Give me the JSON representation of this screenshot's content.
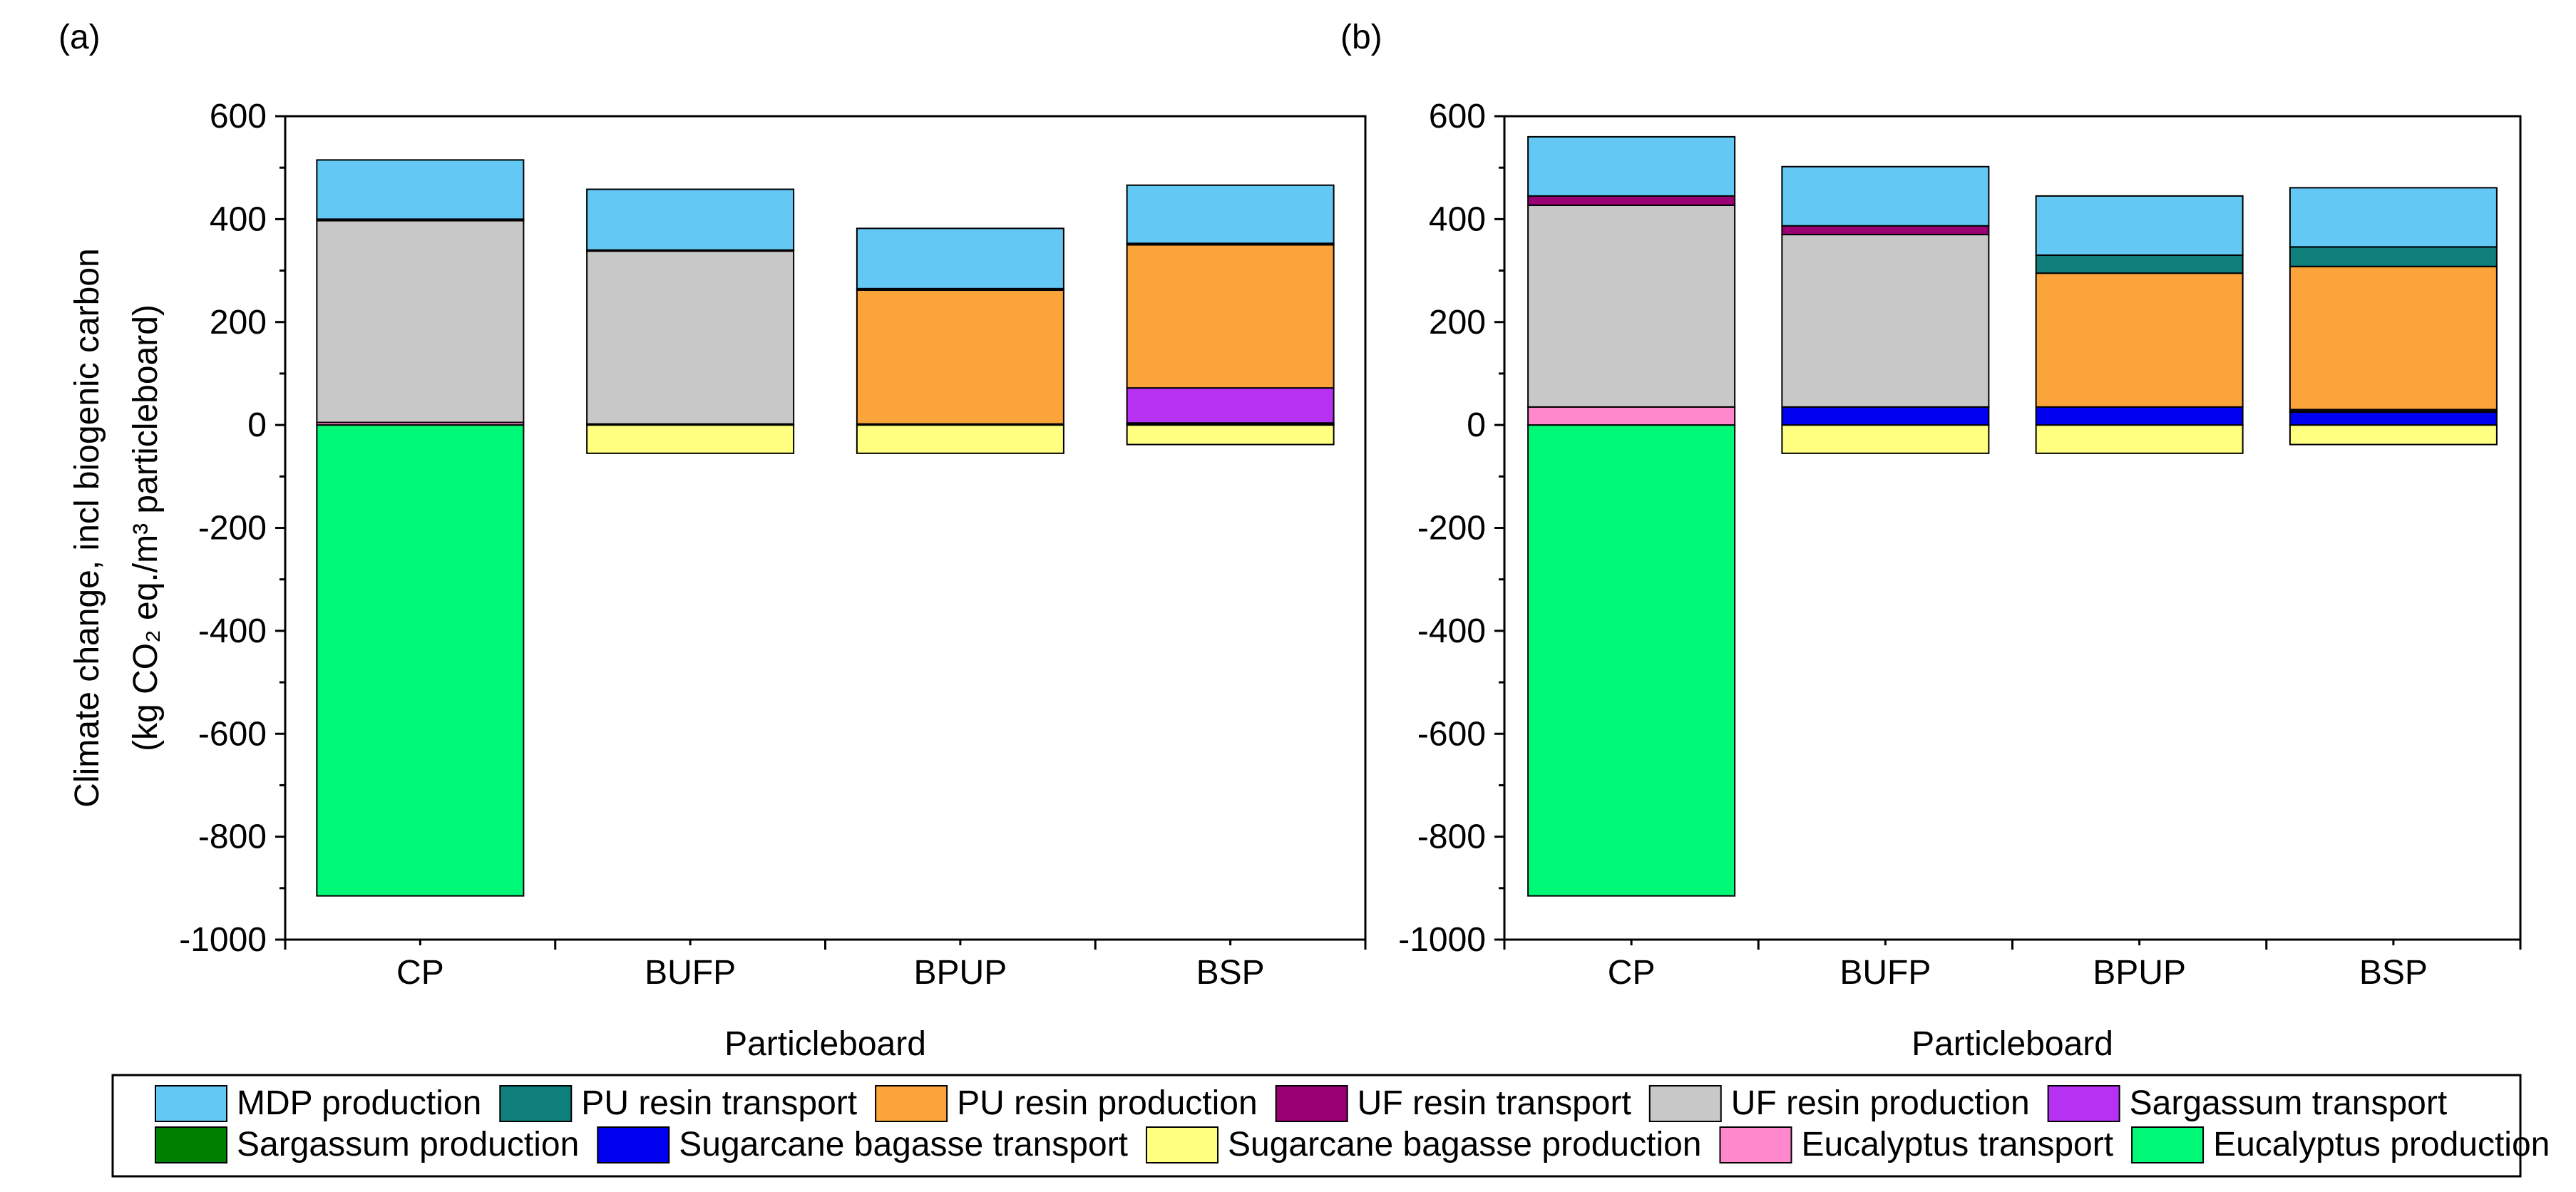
{
  "chart_data": [
    {
      "type": "bar",
      "stacked": true,
      "panel_label": "(a)",
      "xlabel": "Particleboard",
      "ylabel_line1": "Climate change, incl biogenic carbon",
      "ylabel_line2": "(kg CO₂ eq./m³ particleboard)",
      "ylim": [
        -1000,
        600
      ],
      "yticks": [
        600,
        400,
        200,
        0,
        -200,
        -400,
        -600,
        -800,
        -1000
      ],
      "categories": [
        "CP",
        "BUFP",
        "BPUP",
        "BSP"
      ],
      "series": [
        {
          "name": "Eucalyptus production",
          "values": [
            -915,
            0,
            0,
            0
          ]
        },
        {
          "name": "Sugarcane bagasse production",
          "values": [
            0,
            -55,
            -55,
            -38
          ]
        },
        {
          "name": "Eucalyptus transport",
          "values": [
            5,
            0,
            0,
            0
          ]
        },
        {
          "name": "Sugarcane bagasse transport",
          "values": [
            0,
            2,
            2,
            2
          ]
        },
        {
          "name": "Sargassum production",
          "values": [
            0,
            0,
            0,
            2
          ]
        },
        {
          "name": "Sargassum transport",
          "values": [
            0,
            0,
            0,
            68
          ]
        },
        {
          "name": "UF resin production",
          "values": [
            392,
            336,
            0,
            0
          ]
        },
        {
          "name": "UF resin transport",
          "values": [
            3,
            2,
            0,
            0
          ]
        },
        {
          "name": "PU resin production",
          "values": [
            0,
            0,
            260,
            278
          ]
        },
        {
          "name": "PU resin transport",
          "values": [
            0,
            0,
            3,
            3
          ]
        },
        {
          "name": "MDP production",
          "values": [
            115,
            118,
            117,
            113
          ]
        }
      ]
    },
    {
      "type": "bar",
      "stacked": true,
      "panel_label": "(b)",
      "xlabel": "Particleboard",
      "ylim": [
        -1000,
        600
      ],
      "yticks": [
        600,
        400,
        200,
        0,
        -200,
        -400,
        -600,
        -800,
        -1000
      ],
      "categories": [
        "CP",
        "BUFP",
        "BPUP",
        "BSP"
      ],
      "series": [
        {
          "name": "Eucalyptus production",
          "values": [
            -915,
            0,
            0,
            0
          ]
        },
        {
          "name": "Sugarcane bagasse production",
          "values": [
            0,
            -55,
            -55,
            -38
          ]
        },
        {
          "name": "Eucalyptus transport",
          "values": [
            35,
            0,
            0,
            0
          ]
        },
        {
          "name": "Sugarcane bagasse transport",
          "values": [
            0,
            35,
            35,
            25
          ]
        },
        {
          "name": "Sargassum production",
          "values": [
            0,
            0,
            0,
            2
          ]
        },
        {
          "name": "Sargassum transport",
          "values": [
            0,
            0,
            0,
            3
          ]
        },
        {
          "name": "UF resin production",
          "values": [
            392,
            335,
            0,
            0
          ]
        },
        {
          "name": "UF resin transport",
          "values": [
            18,
            17,
            0,
            0
          ]
        },
        {
          "name": "PU resin production",
          "values": [
            0,
            0,
            260,
            278
          ]
        },
        {
          "name": "PU resin transport",
          "values": [
            0,
            0,
            35,
            38
          ]
        },
        {
          "name": "MDP production",
          "values": [
            115,
            115,
            115,
            115
          ]
        }
      ]
    }
  ],
  "legend": [
    {
      "label": "MDP production",
      "color": "#64C8F5"
    },
    {
      "label": "PU resin transport",
      "color": "#0E7F7B"
    },
    {
      "label": "PU resin production",
      "color": "#FBA43A"
    },
    {
      "label": "UF resin transport",
      "color": "#990073"
    },
    {
      "label": "UF resin production",
      "color": "#C8C8C8"
    },
    {
      "label": "Sargassum transport",
      "color": "#B731F2"
    },
    {
      "label": "Sargassum production",
      "color": "#008000"
    },
    {
      "label": "Sugarcane bagasse transport",
      "color": "#0000F0"
    },
    {
      "label": "Sugarcane bagasse production",
      "color": "#FFFF80"
    },
    {
      "label": "Eucalyptus transport",
      "color": "#FF88CC"
    },
    {
      "label": "Eucalyptus production",
      "color": "#00FA78"
    }
  ]
}
